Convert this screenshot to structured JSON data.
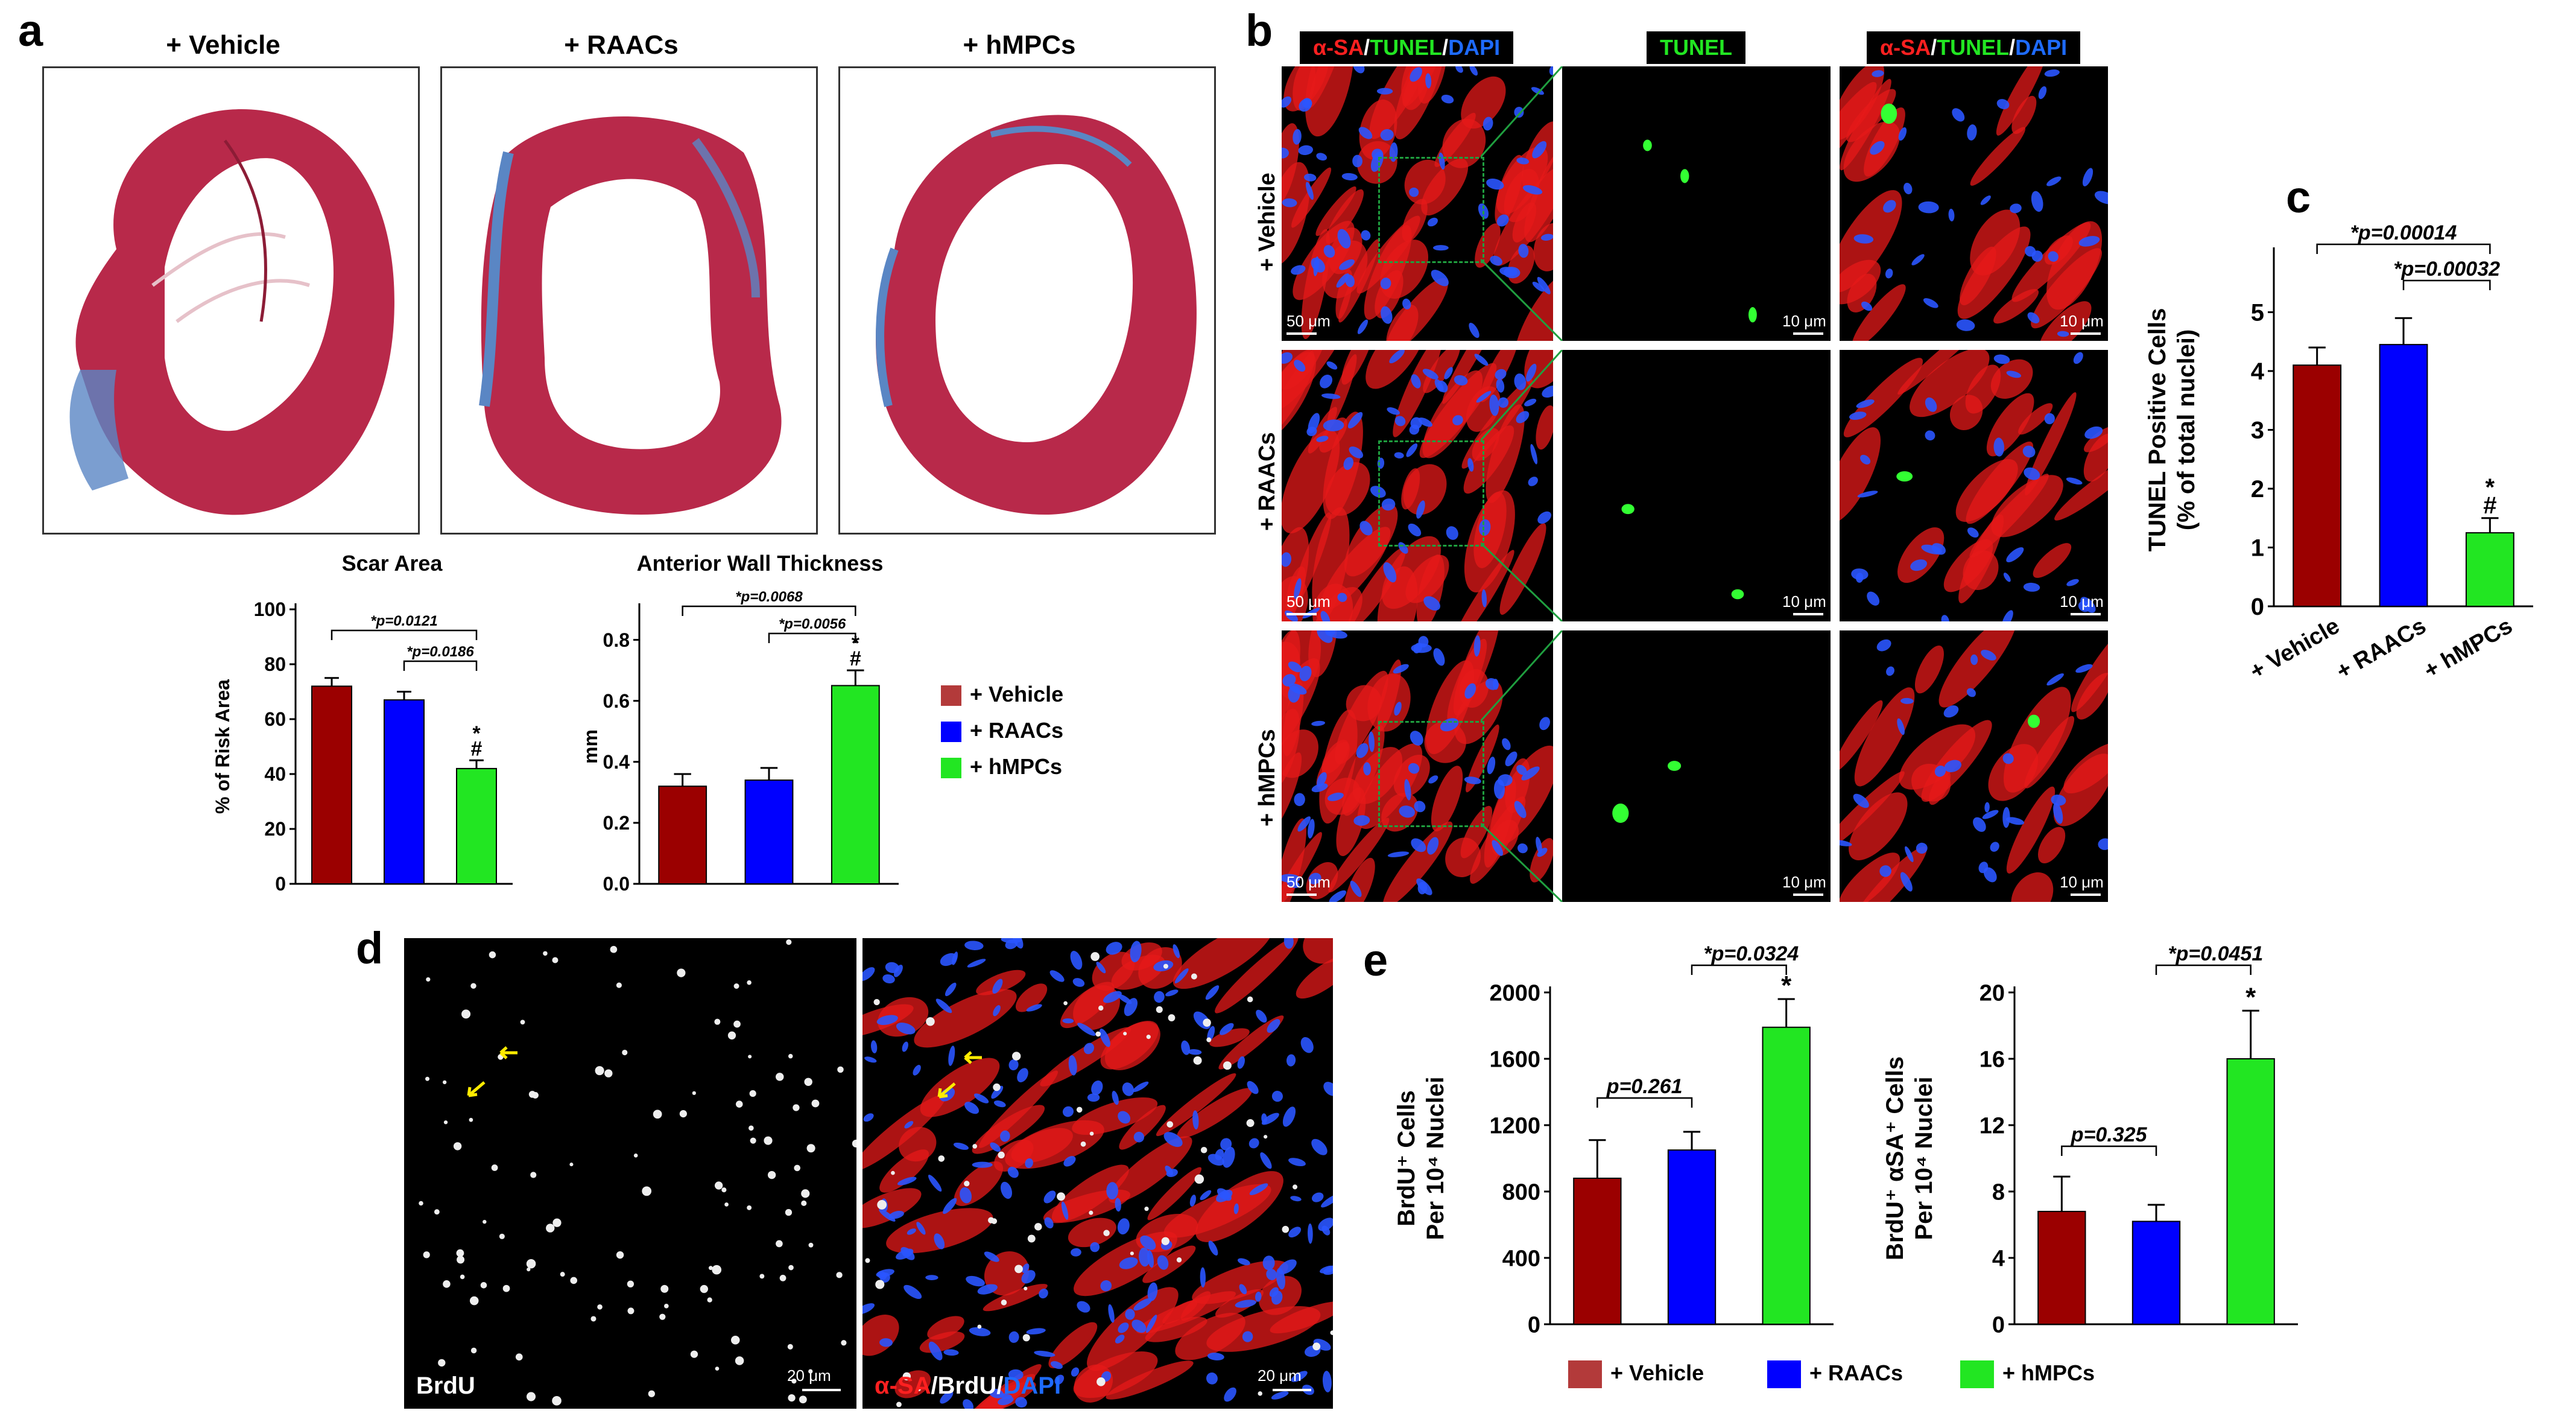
{
  "colors": {
    "vehicle": "#9b0000",
    "raacs": "#0000ff",
    "hmpcs": "#22e622",
    "vehicle_legend": "#b33a3a",
    "red": "#ff2020",
    "green": "#22e622",
    "blue": "#1e6bff"
  },
  "panel_a": {
    "letter": "a",
    "headers": [
      "+ Vehicle",
      "+ RAACs",
      "+ hMPCs"
    ],
    "legend": [
      "+ Vehicle",
      "+ RAACs",
      "+ hMPCs"
    ]
  },
  "panel_b": {
    "letter": "b",
    "col_tags": [
      {
        "parts": [
          {
            "t": "α-SA",
            "c": "red"
          },
          {
            "t": "/",
            "c": "white"
          },
          {
            "t": "TUNEL",
            "c": "green"
          },
          {
            "t": "/",
            "c": "white"
          },
          {
            "t": "DAPI",
            "c": "blue"
          }
        ]
      },
      {
        "parts": [
          {
            "t": "TUNEL",
            "c": "green"
          }
        ]
      },
      {
        "parts": [
          {
            "t": "α-SA",
            "c": "red"
          },
          {
            "t": "/",
            "c": "white"
          },
          {
            "t": "TUNEL",
            "c": "green"
          },
          {
            "t": "/",
            "c": "white"
          },
          {
            "t": "DAPI",
            "c": "blue"
          }
        ]
      }
    ],
    "row_labels": [
      "+ Vehicle",
      "+ RAACs",
      "+ hMPCs"
    ],
    "scale_large": "50 μm",
    "scale_small": "10 μm"
  },
  "panel_c": {
    "letter": "c"
  },
  "panel_d": {
    "letter": "d",
    "left_label": "BrdU",
    "right_label_parts": [
      {
        "t": "α-SA",
        "c": "red"
      },
      {
        "t": "/BrdU/",
        "c": "white"
      },
      {
        "t": "DAPI",
        "c": "blue"
      }
    ],
    "scale": "20 μm"
  },
  "panel_e": {
    "letter": "e",
    "legend": [
      "+ Vehicle",
      "+ RAACs",
      "+ hMPCs"
    ]
  },
  "chart_data": [
    {
      "id": "scar",
      "type": "bar",
      "title": "Scar Area",
      "ylabel": "% of Risk  Area",
      "categories": [
        "+ Vehicle",
        "+ RAACs",
        "+ hMPCs"
      ],
      "values": [
        72,
        67,
        42
      ],
      "errors": [
        3,
        3,
        3
      ],
      "ylim": [
        0,
        100
      ],
      "yticks": [
        0,
        20,
        40,
        60,
        80,
        100
      ],
      "tick_labels": [
        "0",
        "20",
        "40",
        "60",
        "80",
        "100"
      ],
      "markers": [
        "",
        "",
        "*\n#"
      ],
      "brackets": [
        {
          "from": 0,
          "to": 2,
          "label": "*p=0.0121"
        },
        {
          "from": 1,
          "to": 2,
          "label": "*p=0.0186"
        }
      ]
    },
    {
      "id": "wall",
      "type": "bar",
      "title": "Anterior Wall Thickness",
      "ylabel": "mm",
      "categories": [
        "+ Vehicle",
        "+ RAACs",
        "+ hMPCs"
      ],
      "values": [
        0.32,
        0.34,
        0.65
      ],
      "errors": [
        0.04,
        0.04,
        0.05
      ],
      "ylim": [
        0,
        0.9
      ],
      "yticks": [
        0,
        0.2,
        0.4,
        0.6,
        0.8
      ],
      "tick_labels": [
        "0.0",
        "0.2",
        "0.4",
        "0.6",
        "0.8"
      ],
      "markers": [
        "",
        "",
        "*\n#"
      ],
      "brackets": [
        {
          "from": 0,
          "to": 2,
          "label": "*p=0.0068"
        },
        {
          "from": 1,
          "to": 2,
          "label": "*p=0.0056"
        }
      ]
    },
    {
      "id": "tunel",
      "type": "bar",
      "title": "",
      "ylabel": "TUNEL Positive Cells\n(% of total nuclei)",
      "categories": [
        "+ Vehicle",
        "+ RAACs",
        "+ hMPCs"
      ],
      "values": [
        4.1,
        4.45,
        1.25
      ],
      "errors": [
        0.3,
        0.45,
        0.25
      ],
      "ylim": [
        0,
        6
      ],
      "yticks": [
        0,
        1,
        2,
        3,
        4,
        5
      ],
      "tick_labels": [
        "0",
        "1",
        "2",
        "3",
        "4",
        "5"
      ],
      "markers": [
        "",
        "",
        "*\n#"
      ],
      "brackets": [
        {
          "from": 0,
          "to": 2,
          "label": "*p=0.00014"
        },
        {
          "from": 1,
          "to": 2,
          "label": "*p=0.00032"
        }
      ]
    },
    {
      "id": "brdu",
      "type": "bar",
      "title": "",
      "ylabel": "BrdU⁺ Cells\nPer 10⁴ Nuclei",
      "categories": [
        "+ Vehicle",
        "+ RAACs",
        "+ hMPCs"
      ],
      "values": [
        880,
        1050,
        1790
      ],
      "errors": [
        230,
        110,
        170
      ],
      "ylim": [
        0,
        2000
      ],
      "yticks": [
        0,
        400,
        800,
        1200,
        1600,
        2000
      ],
      "tick_labels": [
        "0",
        "400",
        "800",
        "1200",
        "1600",
        "2000"
      ],
      "markers": [
        "",
        "",
        "*"
      ],
      "brackets": [
        {
          "from": 0,
          "to": 1,
          "label": "p=0.261"
        },
        {
          "from": 1,
          "to": 2,
          "label": "*p=0.0324"
        }
      ]
    },
    {
      "id": "brdusa",
      "type": "bar",
      "title": "",
      "ylabel": "BrdU⁺ αSA⁺ Cells\nPer 10⁴ Nuclei",
      "categories": [
        "+ Vehicle",
        "+ RAACs",
        "+ hMPCs"
      ],
      "values": [
        6.8,
        6.2,
        16.0
      ],
      "errors": [
        2.1,
        1.0,
        2.9
      ],
      "ylim": [
        0,
        20
      ],
      "yticks": [
        0,
        4,
        8,
        12,
        16,
        20
      ],
      "tick_labels": [
        "0",
        "4",
        "8",
        "12",
        "16",
        "20"
      ],
      "markers": [
        "",
        "",
        "*"
      ],
      "brackets": [
        {
          "from": 0,
          "to": 1,
          "label": "p=0.325"
        },
        {
          "from": 1,
          "to": 2,
          "label": "*p=0.0451"
        }
      ]
    }
  ]
}
